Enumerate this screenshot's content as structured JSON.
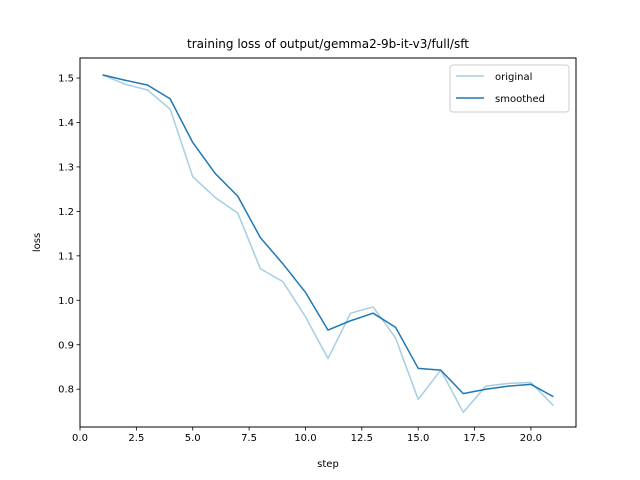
{
  "chart_data": {
    "type": "line",
    "title": "training loss of output/gemma2-9b-it-v3/full/sft",
    "xlabel": "step",
    "ylabel": "loss",
    "xlim": [
      0,
      22
    ],
    "ylim": [
      0.715,
      1.545
    ],
    "xticks": [
      0.0,
      2.5,
      5.0,
      7.5,
      10.0,
      12.5,
      15.0,
      17.5,
      20.0
    ],
    "xtick_labels": [
      "0.0",
      "2.5",
      "5.0",
      "7.5",
      "10.0",
      "12.5",
      "15.0",
      "17.5",
      "20.0"
    ],
    "yticks": [
      0.8,
      0.9,
      1.0,
      1.1,
      1.2,
      1.3,
      1.4,
      1.5
    ],
    "ytick_labels": [
      "0.8",
      "0.9",
      "1.0",
      "1.1",
      "1.2",
      "1.3",
      "1.4",
      "1.5"
    ],
    "legend_position": "top-right",
    "grid": false,
    "x": [
      1,
      2,
      3,
      4,
      5,
      6,
      7,
      8,
      9,
      10,
      11,
      12,
      13,
      14,
      15,
      16,
      17,
      18,
      19,
      20,
      21
    ],
    "series": [
      {
        "name": "original",
        "color": "#a6cee3",
        "values": [
          1.507,
          1.486,
          1.473,
          1.43,
          1.278,
          1.231,
          1.196,
          1.071,
          1.042,
          0.963,
          0.869,
          0.971,
          0.985,
          0.915,
          0.777,
          0.843,
          0.748,
          0.807,
          0.813,
          0.815,
          0.763
        ]
      },
      {
        "name": "smoothed",
        "color": "#1f78b4",
        "values": [
          1.507,
          1.495,
          1.484,
          1.453,
          1.355,
          1.285,
          1.234,
          1.141,
          1.082,
          1.018,
          0.933,
          0.954,
          0.971,
          0.939,
          0.847,
          0.843,
          0.79,
          0.8,
          0.807,
          0.811,
          0.783
        ]
      }
    ]
  }
}
